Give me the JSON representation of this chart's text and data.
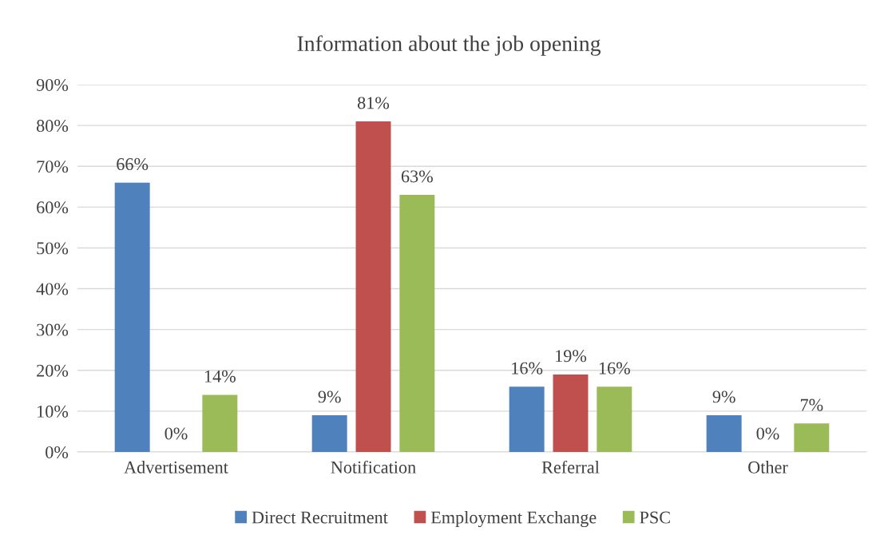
{
  "chart_data": {
    "type": "bar",
    "title": "Information about the job opening",
    "categories": [
      "Advertisement",
      "Notification",
      "Referral",
      "Other"
    ],
    "series": [
      {
        "name": "Direct Recruitment",
        "color": "#4f81bd",
        "values": [
          66,
          9,
          16,
          9
        ],
        "value_labels": [
          "66%",
          "9%",
          "16%",
          "9%"
        ]
      },
      {
        "name": "Employment Exchange",
        "color": "#c0504d",
        "values": [
          0,
          81,
          19,
          0
        ],
        "value_labels": [
          "0%",
          "81%",
          "19%",
          "0%"
        ]
      },
      {
        "name": "PSC",
        "color": "#9bbb59",
        "values": [
          14,
          63,
          16,
          7
        ],
        "value_labels": [
          "14%",
          "63%",
          "16%",
          "7%"
        ]
      }
    ],
    "ylim": [
      0,
      90
    ],
    "yticks": [
      {
        "value": 0,
        "label": "0%"
      },
      {
        "value": 10,
        "label": "10%"
      },
      {
        "value": 20,
        "label": "20%"
      },
      {
        "value": 30,
        "label": "30%"
      },
      {
        "value": 40,
        "label": "40%"
      },
      {
        "value": 50,
        "label": "50%"
      },
      {
        "value": 60,
        "label": "60%"
      },
      {
        "value": 70,
        "label": "70%"
      },
      {
        "value": 80,
        "label": "80%"
      },
      {
        "value": 90,
        "label": "90%"
      }
    ],
    "grid": "y",
    "legend": "bottom"
  }
}
